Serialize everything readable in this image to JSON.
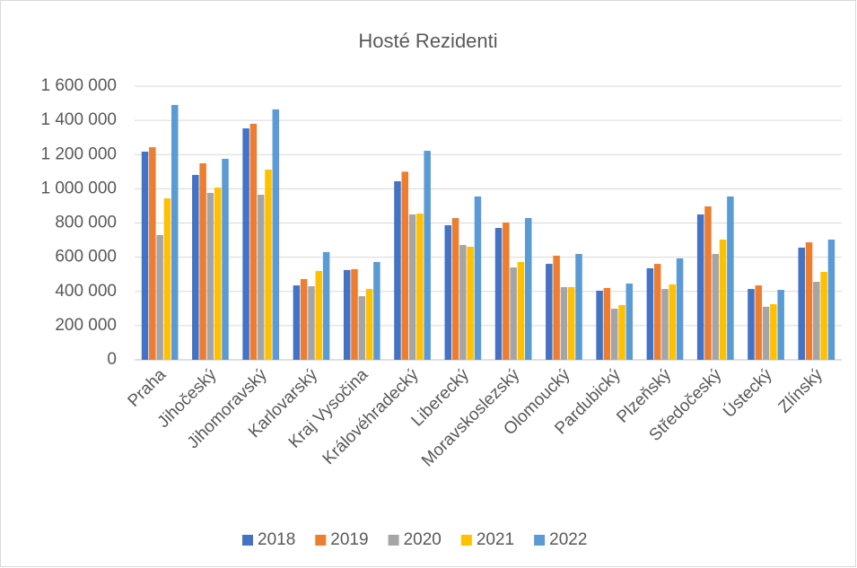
{
  "chart_data": {
    "type": "bar",
    "title": "Hosté Rezidenti",
    "categories": [
      "Praha",
      "Jihočeský",
      "Jihomoravský",
      "Karlovarský",
      "Kraj Vysočina",
      "Královéhradecký",
      "Liberecký",
      "Moravskoslezský",
      "Olomoucký",
      "Pardubický",
      "Plzeňský",
      "Středočeský",
      "Ústecký",
      "Zlínský"
    ],
    "series": [
      {
        "name": "2018",
        "color": "#4472c4",
        "values": [
          1217000,
          1081000,
          1353000,
          435000,
          525000,
          1044000,
          787000,
          771000,
          561000,
          404000,
          535000,
          850000,
          414000,
          656000
        ]
      },
      {
        "name": "2019",
        "color": "#ed7d31",
        "values": [
          1243000,
          1149000,
          1380000,
          472000,
          530000,
          1100000,
          829000,
          803000,
          609000,
          420000,
          561000,
          897000,
          435000,
          687000
        ]
      },
      {
        "name": "2020",
        "color": "#a5a5a5",
        "values": [
          729000,
          976000,
          965000,
          430000,
          372000,
          850000,
          671000,
          540000,
          425000,
          299000,
          414000,
          619000,
          310000,
          456000
        ]
      },
      {
        "name": "2021",
        "color": "#ffc000",
        "values": [
          944000,
          1007000,
          1112000,
          519000,
          414000,
          855000,
          661000,
          572000,
          425000,
          320000,
          441000,
          703000,
          325000,
          514000
        ]
      },
      {
        "name": "2022",
        "color": "#5b9bd5",
        "values": [
          1490000,
          1175000,
          1464000,
          630000,
          572000,
          1222000,
          955000,
          829000,
          619000,
          446000,
          593000,
          955000,
          409000,
          703000
        ]
      }
    ],
    "ylim": [
      0,
      1600000
    ],
    "yticks": [
      0,
      {
        "value": 200000,
        "label": "200 000"
      },
      {
        "value": 400000,
        "label": "400 000"
      },
      {
        "value": 600000,
        "label": "600 000"
      },
      {
        "value": 800000,
        "label": "800 000"
      },
      {
        "value": 1000000,
        "label": "1 000 000"
      },
      {
        "value": 1200000,
        "label": "1 200 000"
      },
      {
        "value": 1400000,
        "label": "1 400 000"
      },
      {
        "value": 1600000,
        "label": "1 600 000"
      }
    ],
    "grid": true,
    "legend": "bottom"
  }
}
